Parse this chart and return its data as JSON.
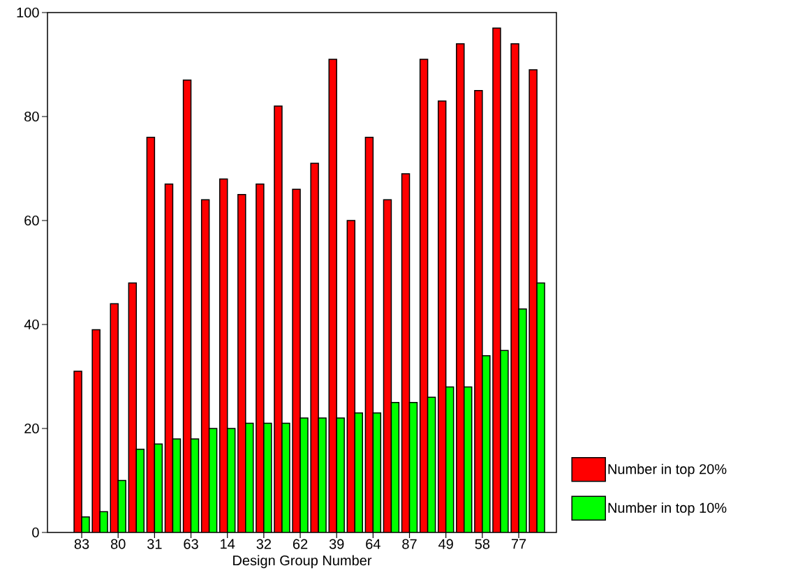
{
  "chart_data": {
    "type": "bar",
    "xlabel": "Design Group Number",
    "categories": [
      "83",
      null,
      "80",
      null,
      "31",
      null,
      "63",
      null,
      "14",
      null,
      "32",
      null,
      "62",
      null,
      "39",
      null,
      "64",
      null,
      "87",
      null,
      "49",
      null,
      "58",
      null,
      "77",
      null
    ],
    "series": [
      {
        "name": "Number in top 20%",
        "color": "#ff0000",
        "values": [
          31,
          39,
          44,
          48,
          76,
          67,
          87,
          64,
          68,
          65,
          67,
          82,
          66,
          71,
          91,
          60,
          76,
          64,
          69,
          91,
          83,
          94,
          85,
          97,
          94,
          89
        ]
      },
      {
        "name": "Number in top 10%",
        "color": "#00ff00",
        "values": [
          3,
          4,
          10,
          16,
          17,
          18,
          18,
          20,
          20,
          21,
          21,
          21,
          22,
          22,
          22,
          23,
          23,
          25,
          25,
          26,
          28,
          28,
          34,
          35,
          43,
          48
        ]
      }
    ],
    "ylim": [
      0,
      100
    ],
    "yticks": [
      0,
      20,
      40,
      60,
      80,
      100
    ],
    "grid": false,
    "legend": "bottom right"
  }
}
